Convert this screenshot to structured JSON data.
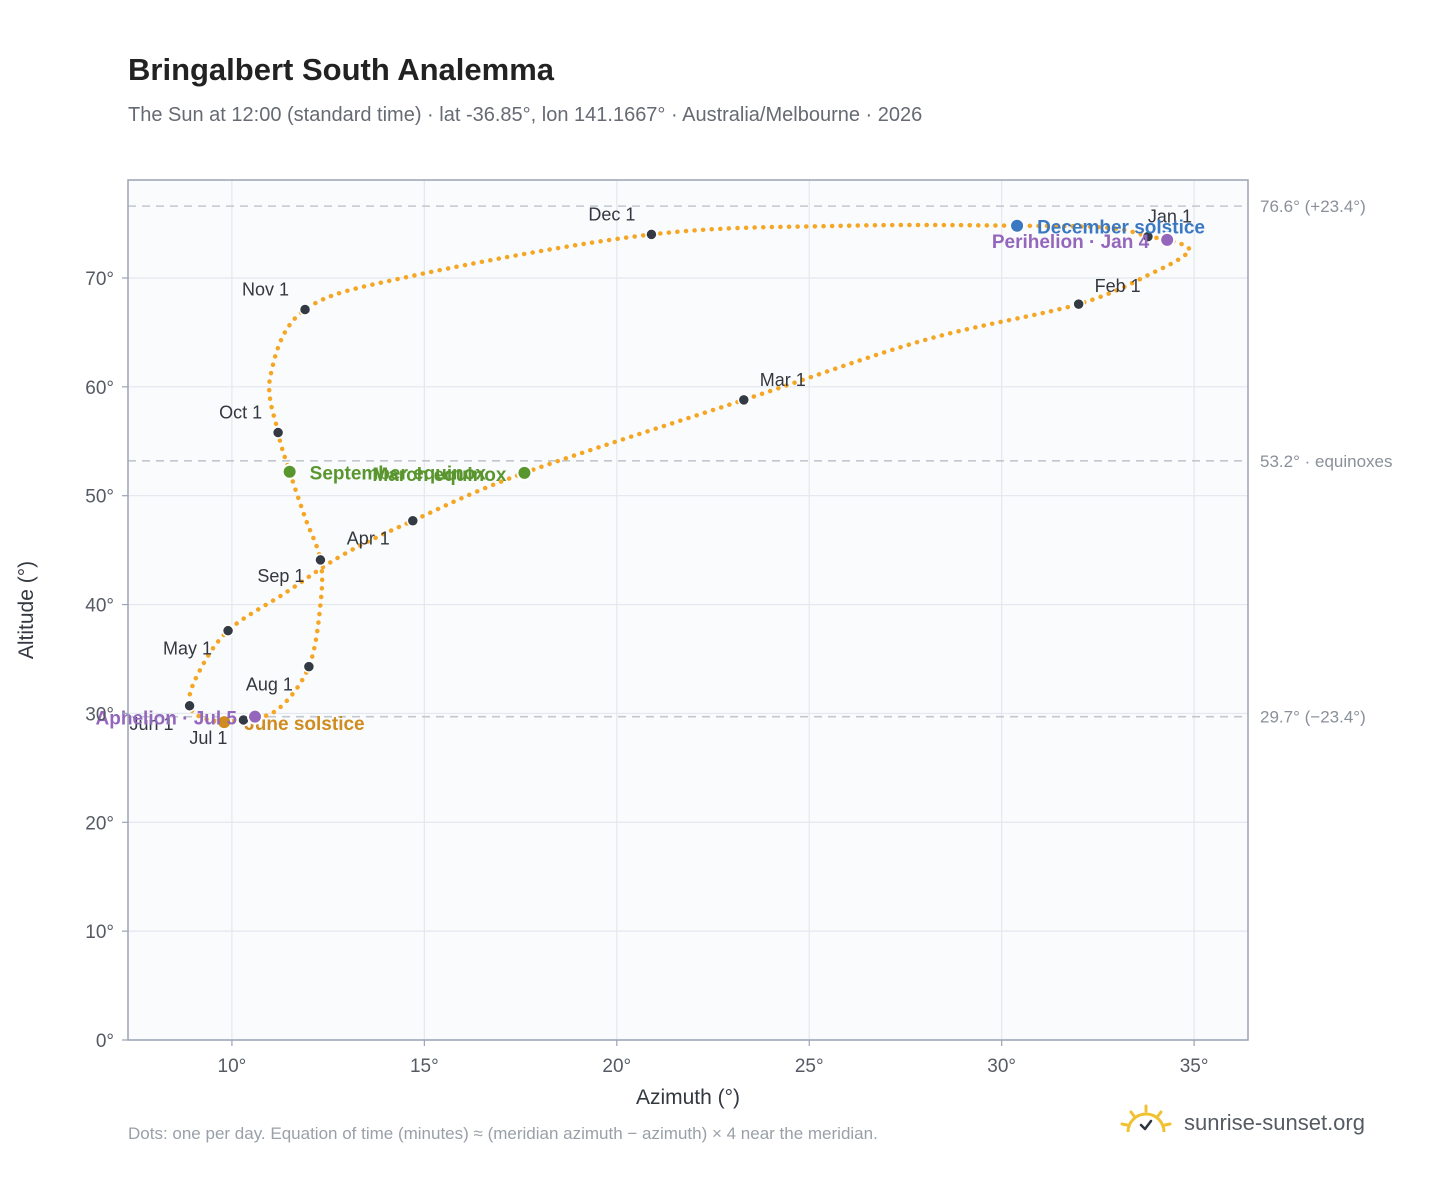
{
  "header": {
    "title": "Bringalbert South Analemma",
    "subtitle": "The Sun at 12:00 (standard time) · lat -36.85°, lon 141.1667° · Australia/Melbourne · 2026"
  },
  "footer": {
    "note": "Dots: one per day. Equation of time (minutes) ≈ (meridian azimuth − azimuth) × 4 near the meridian.",
    "brand": "sunrise-sunset.org",
    "brand_icon": "sun-icon"
  },
  "colors": {
    "path": "#f5a623",
    "month_marker": "#343a44",
    "equinox": "#5a962e",
    "december_solstice": "#3b78c2",
    "june_solstice": "#d08c1e",
    "perihelion": "#9467bd",
    "reference_line": "#c2c8d0",
    "plot_bg": "#f9fbfd",
    "grid": "#e3e8ee",
    "axis_border": "#9aa4b4"
  },
  "chart_data": {
    "type": "scatter",
    "xlabel": "Azimuth (°)",
    "ylabel": "Altitude (°)",
    "xlim": [
      7.3,
      36.4
    ],
    "ylim": [
      0,
      79
    ],
    "x_ticks": [
      10,
      15,
      20,
      25,
      30,
      35
    ],
    "y_ticks": [
      0,
      10,
      20,
      30,
      40,
      50,
      60,
      70
    ],
    "x_tick_labels": [
      "10°",
      "15°",
      "20°",
      "25°",
      "30°",
      "35°"
    ],
    "y_tick_labels": [
      "0°",
      "10°",
      "20°",
      "30°",
      "40°",
      "50°",
      "60°",
      "70°"
    ],
    "grid": true,
    "analemma_path": [
      [
        33.8,
        73.8
      ],
      [
        34.3,
        73.5
      ],
      [
        34.8,
        72.9
      ],
      [
        34.8,
        72.2
      ],
      [
        34.0,
        70.6
      ],
      [
        32.0,
        67.6
      ],
      [
        28.0,
        64.3
      ],
      [
        23.3,
        58.8
      ],
      [
        17.6,
        52.1
      ],
      [
        14.7,
        47.7
      ],
      [
        12.9,
        44.6
      ],
      [
        11.4,
        41.1
      ],
      [
        9.9,
        37.6
      ],
      [
        9.1,
        33.5
      ],
      [
        8.9,
        30.7
      ],
      [
        9.4,
        29.4
      ],
      [
        10.3,
        29.4
      ],
      [
        11.2,
        30.4
      ],
      [
        12.0,
        34.3
      ],
      [
        12.3,
        40.0
      ],
      [
        12.3,
        44.1
      ],
      [
        11.9,
        48.0
      ],
      [
        11.5,
        52.2
      ],
      [
        11.2,
        55.8
      ],
      [
        11.0,
        61.0
      ],
      [
        11.9,
        67.1
      ],
      [
        14.7,
        70.2
      ],
      [
        20.9,
        74.0
      ],
      [
        26.0,
        74.8
      ],
      [
        30.4,
        74.8
      ],
      [
        32.8,
        74.6
      ],
      [
        33.8,
        73.8
      ]
    ],
    "month_markers": [
      {
        "label": "Jan 1",
        "x": 33.8,
        "y": 73.8,
        "anchor": "start",
        "dx": 0,
        "dy": -14
      },
      {
        "label": "Feb 1",
        "x": 32.0,
        "y": 67.6,
        "anchor": "start",
        "dx": 16,
        "dy": -12
      },
      {
        "label": "Mar 1",
        "x": 23.3,
        "y": 58.8,
        "anchor": "start",
        "dx": 16,
        "dy": -14
      },
      {
        "label": "Apr 1",
        "x": 14.7,
        "y": 47.7,
        "anchor": "start",
        "dx": -66,
        "dy": 24
      },
      {
        "label": "May 1",
        "x": 9.9,
        "y": 37.6,
        "anchor": "end",
        "dx": -16,
        "dy": 24
      },
      {
        "label": "Jun 1",
        "x": 8.9,
        "y": 30.7,
        "anchor": "end",
        "dx": -16,
        "dy": 24
      },
      {
        "label": "Jul 1",
        "x": 10.3,
        "y": 29.4,
        "anchor": "end",
        "dx": -16,
        "dy": 24
      },
      {
        "label": "Aug 1",
        "x": 12.0,
        "y": 34.3,
        "anchor": "end",
        "dx": -16,
        "dy": 24
      },
      {
        "label": "Sep 1",
        "x": 12.3,
        "y": 44.1,
        "anchor": "end",
        "dx": -16,
        "dy": 22
      },
      {
        "label": "Oct 1",
        "x": 11.2,
        "y": 55.8,
        "anchor": "end",
        "dx": -16,
        "dy": -14
      },
      {
        "label": "Nov 1",
        "x": 11.9,
        "y": 67.1,
        "anchor": "end",
        "dx": -16,
        "dy": -14
      },
      {
        "label": "Dec 1",
        "x": 20.9,
        "y": 74.0,
        "anchor": "end",
        "dx": -16,
        "dy": -14
      }
    ],
    "special_points": [
      {
        "label": "December solstice",
        "x": 30.4,
        "y": 74.8,
        "color": "#3b78c2",
        "anchor": "start",
        "dx": 20,
        "dy": 8
      },
      {
        "label": "Perihelion · Jan 4",
        "x": 34.3,
        "y": 73.5,
        "color": "#9467bd",
        "anchor": "end",
        "dx": -18,
        "dy": 8
      },
      {
        "label": "March equinox",
        "x": 17.6,
        "y": 52.1,
        "color": "#5a962e",
        "anchor": "end",
        "dx": -18,
        "dy": 8
      },
      {
        "label": "September equinox",
        "x": 11.5,
        "y": 52.2,
        "color": "#5a962e",
        "anchor": "start",
        "dx": 20,
        "dy": 8
      },
      {
        "label": "June solstice",
        "x": 9.8,
        "y": 29.2,
        "color": "#d08c1e",
        "anchor": "start",
        "dx": 20,
        "dy": 8
      },
      {
        "label": "Aphelion · Jul 5",
        "x": 10.6,
        "y": 29.7,
        "color": "#9467bd",
        "anchor": "end",
        "dx": -18,
        "dy": 8
      }
    ],
    "reference_lines": [
      {
        "y": 76.6,
        "label": "76.6° (+23.4°)"
      },
      {
        "y": 53.2,
        "label": "53.2° · equinoxes"
      },
      {
        "y": 29.7,
        "label": "29.7° (−23.4°)"
      }
    ]
  }
}
